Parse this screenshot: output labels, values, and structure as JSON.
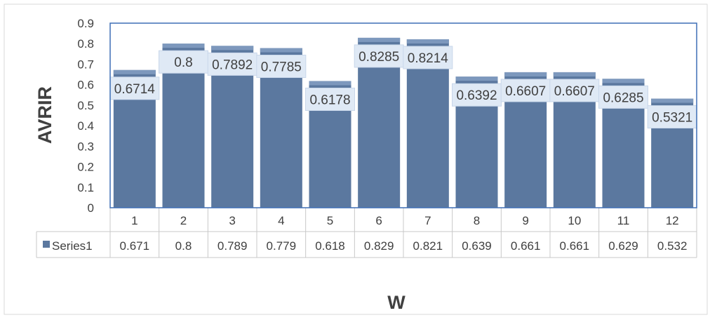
{
  "chart_data": {
    "type": "bar",
    "title": "",
    "xlabel": "W",
    "ylabel": "AVRIR",
    "categories": [
      "1",
      "2",
      "3",
      "4",
      "5",
      "6",
      "7",
      "8",
      "9",
      "10",
      "11",
      "12"
    ],
    "series": [
      {
        "name": "Series1",
        "values": [
          0.6714,
          0.8,
          0.7892,
          0.7785,
          0.6178,
          0.8285,
          0.8214,
          0.6392,
          0.6607,
          0.6607,
          0.6285,
          0.5321
        ],
        "data_labels": [
          "0.6714",
          "0.8",
          "0.7892",
          "0.7785",
          "0.6178",
          "0.8285",
          "0.8214",
          "0.6392",
          "0.6607",
          "0.6607",
          "0.6285",
          "0.5321"
        ],
        "table_values": [
          "0.671",
          "0.8",
          "0.789",
          "0.779",
          "0.618",
          "0.829",
          "0.821",
          "0.639",
          "0.661",
          "0.661",
          "0.629",
          "0.532"
        ]
      }
    ],
    "y_ticks": [
      "0",
      "0.1",
      "0.2",
      "0.3",
      "0.4",
      "0.5",
      "0.6",
      "0.7",
      "0.8",
      "0.9"
    ],
    "ylim": [
      0,
      0.9
    ],
    "grid": false,
    "legend": "data-table",
    "colors": {
      "bar": "#5b789f",
      "bar_top": "#7d98bd",
      "plot_border": "#3f6fb5",
      "table_border": "#c8c8c8",
      "axis_text": "#404040",
      "label_box": "#dfe9f5"
    }
  }
}
